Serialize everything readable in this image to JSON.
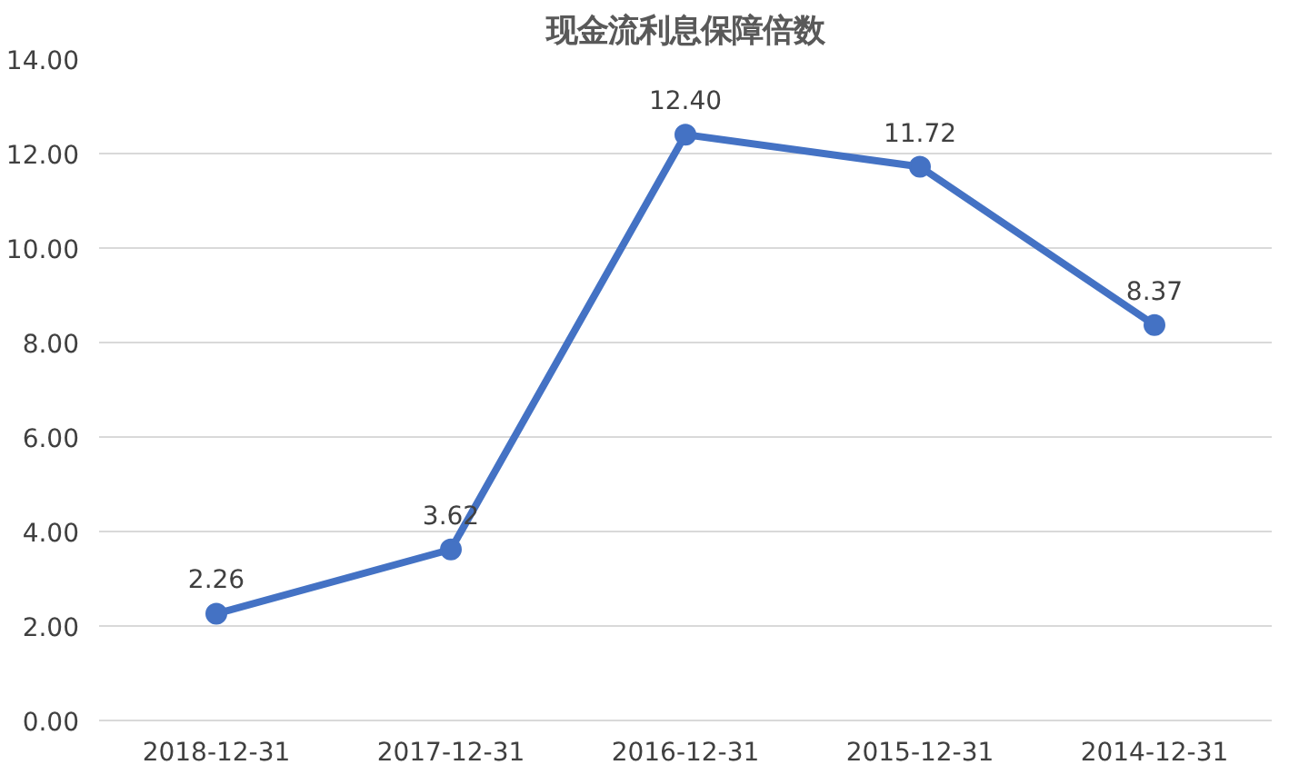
{
  "chart_data": {
    "type": "line",
    "title": "现金流利息保障倍数",
    "categories": [
      "2018-12-31",
      "2017-12-31",
      "2016-12-31",
      "2015-12-31",
      "2014-12-31"
    ],
    "series": [
      {
        "color": "#4472c4",
        "values": [
          2.26,
          3.62,
          12.4,
          11.72,
          8.37
        ],
        "value_labels": [
          "2.26",
          "3.62",
          "12.40",
          "11.72",
          "8.37"
        ]
      }
    ],
    "ylim": [
      0,
      14
    ],
    "yticks": [
      {
        "value": 0,
        "label": "0.00"
      },
      {
        "value": 2,
        "label": "2.00"
      },
      {
        "value": 4,
        "label": "4.00"
      },
      {
        "value": 6,
        "label": "6.00"
      },
      {
        "value": 8,
        "label": "8.00"
      },
      {
        "value": 10,
        "label": "10.00"
      },
      {
        "value": 12,
        "label": "12.00"
      },
      {
        "value": 14,
        "label": "14.00"
      }
    ],
    "grid": "y",
    "marker": "circle",
    "line_style": "solid"
  }
}
